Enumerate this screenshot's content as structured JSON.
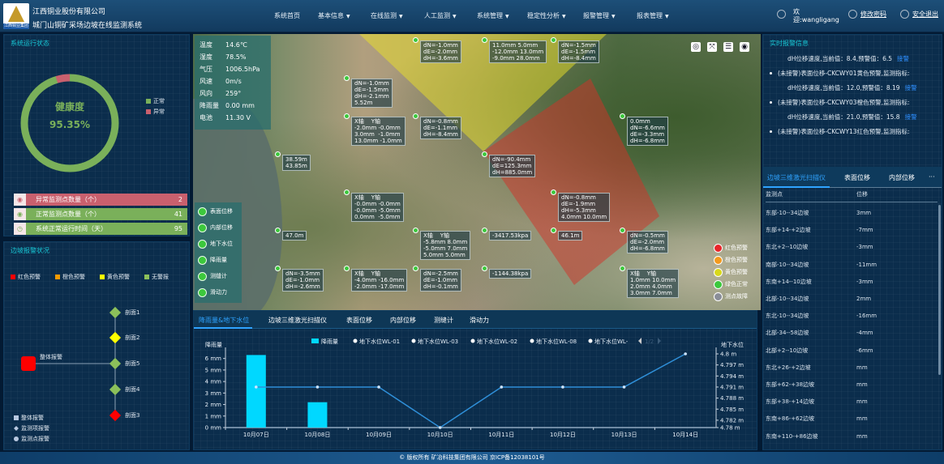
{
  "header": {
    "company": "江西铜业股份有限公司",
    "system": "城门山铜矿采场边坡在线监测系统",
    "logo_text": "江西铜业集团",
    "nav": [
      {
        "label": "系统首页",
        "dropdown": false
      },
      {
        "label": "基本信息",
        "dropdown": true
      },
      {
        "label": "在线监测",
        "dropdown": true
      },
      {
        "label": "人工监测",
        "dropdown": true
      },
      {
        "label": "系统管理",
        "dropdown": true
      },
      {
        "label": "稳定性分析",
        "dropdown": true
      },
      {
        "label": "报警管理",
        "dropdown": true
      },
      {
        "label": "报表管理",
        "dropdown": true
      }
    ],
    "welcome": "欢",
    "welcome2": "迎:wangligang",
    "change_password": "修改密码",
    "logout": "安全退出"
  },
  "system_status": {
    "title": "系统运行状态",
    "center_label": "健康度",
    "health": "95.35%",
    "health_value": 95.35,
    "legend": [
      {
        "label": "正常",
        "color": "#7ab05a"
      },
      {
        "label": "异常",
        "color": "#c9606e"
      }
    ],
    "stats": [
      {
        "label": "异常监测点数量（个）",
        "value": "2",
        "color": "#c9606e"
      },
      {
        "label": "正常监测点数量（个）",
        "value": "41",
        "color": "#7ab05a"
      },
      {
        "label": "系统正常运行时间（天）",
        "value": "95",
        "color": "#7ab05a"
      }
    ]
  },
  "slope_alarm": {
    "title": "边坡报警状况",
    "legend": [
      {
        "label": "红色预警",
        "color": "#ff0000"
      },
      {
        "label": "橙色预警",
        "color": "#f59a00"
      },
      {
        "label": "黄色预警",
        "color": "#ffff00"
      },
      {
        "label": "无警报",
        "color": "#8cc05a"
      }
    ],
    "root": {
      "label": "整体报警",
      "color": "#ff0000"
    },
    "sections": [
      {
        "label": "剖面1",
        "color": "#8cc05a"
      },
      {
        "label": "剖面2",
        "color": "#ffff00"
      },
      {
        "label": "剖面5",
        "color": "#8cc05a"
      },
      {
        "label": "剖面4",
        "color": "#8cc05a"
      },
      {
        "label": "剖面3",
        "color": "#ff0000"
      }
    ],
    "type_legend": [
      "整体报警",
      "监测项报警",
      "监测点报警"
    ]
  },
  "map": {
    "weather": [
      {
        "k": "温度",
        "v": "14.6℃"
      },
      {
        "k": "湿度",
        "v": "78.5%"
      },
      {
        "k": "气压",
        "v": "1006.5hPa"
      },
      {
        "k": "风速",
        "v": "0m/s"
      },
      {
        "k": "风向",
        "v": "259°"
      },
      {
        "k": "降雨量",
        "v": "0.00 mm"
      },
      {
        "k": "电池",
        "v": "11.30 V"
      }
    ],
    "layers": [
      "表面位移",
      "内部位移",
      "地下水位",
      "降雨量",
      "测缝计",
      "滑动力"
    ],
    "alert_legend": [
      {
        "label": "红色预警",
        "color": "#e8262a"
      },
      {
        "label": "橙色预警",
        "color": "#f39a1e"
      },
      {
        "label": "黄色预警",
        "color": "#d8d81a"
      },
      {
        "label": "绿色正常",
        "color": "#3cc83c"
      },
      {
        "label": "测点故障",
        "color": "#8a8e98"
      }
    ],
    "tools": [
      "locate-icon",
      "fullscreen-icon",
      "list-icon",
      "record-icon"
    ],
    "labels": [
      "dN=-1.0mm\ndE=-2.0mm\ndH=-3.6mm",
      "11.0mm 5.0mm\n-12.0mm 13.0mm\n-9.0mm 28.0mm",
      "X轴    Y轴\n-2.0mm -0.0mm\n3.0mm  -1.0mm\n13.0mm -1.0mm",
      "38.59m\n43.85m",
      "dN=-0.8mm\ndE=-1.1mm\ndH=-8.4mm",
      "X轴    Y轴\n-0.0mm -0.0mm\n-0.0mm -5.0mm\n0.0mm  -5.0mm",
      "dN=-90.4mm\ndE=125.3mm\ndH=885.0mm",
      "0.0mm\ndN=-6.6mm\ndE=-3.3mm\ndH=-6.8mm",
      "dN=-0.8mm\ndE=-1.9mm\ndH=-5.3mm\n4.0mm 10.0mm",
      "46.1m",
      "dN=-0.5mm\ndE=-2.0mm\ndH=-6.8mm",
      "-3417.53kpa",
      "-1144.38kpa",
      "X轴    Y轴\n1.0mm 10.0mm\n2.0mm 4.0mm\n3.0mm 7.0mm",
      "47.0m",
      "X轴    Y轴\n-5.8mm 8.0mm\n-5.0mm 7.0mm\n5.0mm 5.0mm",
      "dN=-2.5mm\ndE=-1.0mm\ndH=-0.1mm",
      "dN=-3.5mm\ndE=-1.0mm\ndH=-2.6mm",
      "X轴    Y轴\n-4.0mm -16.0mm\n-2.0mm -17.0mm",
      "dN=-1.0mm\ndE=-1.5mm\ndH=-2.1mm\n5.52m",
      "dN=-1.5mm\ndE=-1.5mm\ndH=-8.4mm"
    ]
  },
  "bottom": {
    "tabs": [
      "降雨量&地下水位",
      "边坡三维激光扫描仪",
      "表面位移",
      "内部位移",
      "测缝计",
      "滑动力"
    ],
    "active_tab": 0
  },
  "chart_data": {
    "type": "bar+line",
    "ylabel": "降雨量",
    "y2label": "地下水位",
    "categories": [
      "10月07日",
      "10月08日",
      "10月09日",
      "10月10日",
      "10月11日",
      "10月12日",
      "10月13日",
      "10月14日"
    ],
    "legend": [
      "降雨量",
      "地下水位WL-01",
      "地下水位WL-03",
      "地下水位WL-02",
      "地下水位WL-08",
      "地下水位WL-"
    ],
    "legend_page": "1/2",
    "series": [
      {
        "name": "降雨量",
        "type": "bar",
        "axis": "left",
        "color": "#00d8ff",
        "values": [
          6.3,
          2.2,
          0,
          0,
          0,
          0,
          0,
          0
        ]
      },
      {
        "name": "地下水位WL-01",
        "type": "line",
        "axis": "right",
        "color": "#2f8fd8",
        "values": [
          4.791,
          4.791,
          4.791,
          4.78,
          4.791,
          4.791,
          4.791,
          4.8
        ]
      }
    ],
    "ylim": [
      0,
      6.4
    ],
    "y2lim": [
      4.78,
      4.8
    ],
    "yticks": [
      "0 mm",
      "1 mm",
      "2 mm",
      "3 mm",
      "4 mm",
      "5 mm",
      "6 mm"
    ],
    "y2ticks": [
      "4.78 m",
      "4.782 m",
      "4.785 m",
      "4.788 m",
      "4.791 m",
      "4.794 m",
      "4.797 m",
      "4.8 m"
    ],
    "grid": false,
    "legend_position": "top"
  },
  "realtime_alarm": {
    "title": "实时报警信息",
    "items": [
      {
        "line1": null,
        "line2": "dH位移速度,当前值：8.4,预警值：6.5",
        "ack": "接警"
      },
      {
        "line1": "(未接警)表面位移-CKCWY01黄色预警,监测指标:",
        "line2": "dH位移速度,当前值：12.0,预警值：8.19",
        "ack": "接警"
      },
      {
        "line1": "(未接警)表面位移-CKCWY03橙色预警,监测指标:",
        "line2": "dH位移速度,当前值：21.0,预警值：15.8",
        "ack": "接警"
      },
      {
        "line1": "(未接警)表面位移-CKCWY13红色预警,监测指标:",
        "line2": null,
        "ack": null
      }
    ]
  },
  "right_table": {
    "tabs": [
      "边坡三维激光扫描仪",
      "表面位移",
      "内部位移",
      "···"
    ],
    "active_tab": 0,
    "columns": [
      "监测点",
      "位移"
    ],
    "rows": [
      [
        "东部-10--34边坡",
        "3mm"
      ],
      [
        "东部+14-+2边坡",
        "-7mm"
      ],
      [
        "东北+2--10边坡",
        "-3mm"
      ],
      [
        "南部-10--34边坡",
        "-11mm"
      ],
      [
        "东南+14--10边坡",
        "-3mm"
      ],
      [
        "北部-10--34边坡",
        "2mm"
      ],
      [
        "东北-10--34边坡",
        "-16mm"
      ],
      [
        "北部-34--58边坡",
        "-4mm"
      ],
      [
        "北部+2--10边坡",
        "-6mm"
      ],
      [
        "东北+26-+2边坡",
        "mm"
      ],
      [
        "东部+62-+38边坡",
        "mm"
      ],
      [
        "东部+38-+14边坡",
        "mm"
      ],
      [
        "东南+86-+62边坡",
        "mm"
      ],
      [
        "东南+110-+86边坡",
        "mm"
      ]
    ]
  },
  "footer": "© 版权所有 矿冶科技集团有限公司 京ICP备12038101号"
}
